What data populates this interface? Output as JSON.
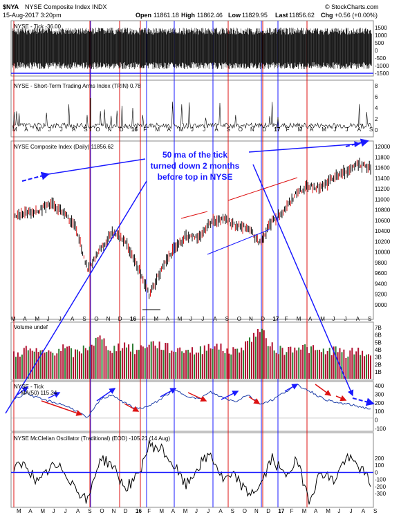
{
  "header": {
    "symbol": "$NYA",
    "name": "NYSE Composite Index INDX",
    "date": "15-Aug-2017 3:20pm",
    "open_label": "Open",
    "open": "11861.18",
    "high_label": "High",
    "high": "11862.46",
    "low_label": "Low",
    "low": "11829.95",
    "last_label": "Last",
    "last": "11856.62",
    "chg_label": "Chg",
    "chg": "+0.56 (+0.00%)",
    "source": "© StockCharts.com"
  },
  "colors": {
    "vline_red": "#dd1111",
    "vline_blue": "#1a1aff",
    "price": "#000000",
    "annotation": "#1a1aff",
    "vol_red": "#b01030",
    "vol_green": "#2e7d32"
  },
  "x_axis_labels": [
    "M",
    "A",
    "M",
    "J",
    "J",
    "A",
    "S",
    "O",
    "N",
    "D",
    "16",
    "F",
    "M",
    "A",
    "M",
    "J",
    "J",
    "A",
    "S",
    "O",
    "N",
    "D",
    "17",
    "F",
    "M",
    "A",
    "M",
    "J",
    "J",
    "A",
    "S"
  ],
  "panels": {
    "tick": {
      "label": "NYSE - Tick -36.00",
      "yticks": [
        "1500",
        "1000",
        "500",
        "0",
        "-500",
        "-1000",
        "-1500"
      ]
    },
    "trin": {
      "label": "NYSE - Short-Term Trading Arms Index (TRIN) 0.78",
      "yticks": [
        "8",
        "6",
        "4",
        "2",
        "0"
      ]
    },
    "price": {
      "label": "NYSE Composite Index (Daily) 11856.62",
      "yticks": [
        "12000",
        "11800",
        "11600",
        "11400",
        "11200",
        "11000",
        "10800",
        "10600",
        "10400",
        "10200",
        "10000",
        "9800",
        "9600",
        "9400",
        "9200",
        "9000"
      ]
    },
    "volume": {
      "label": "Volume undef",
      "yticks": [
        "7B",
        "6B",
        "5B",
        "4B",
        "3B",
        "2B",
        "1B"
      ]
    },
    "tickma": {
      "label": "NYSE - Tick",
      "sublabel": "MA(50) 115.34",
      "yticks": [
        "400",
        "300",
        "200",
        "100",
        "0",
        "-100"
      ]
    },
    "mco": {
      "label": "NYSE McClellan Oscillator (Traditional) (EOD) -105.21 (14 Aug)",
      "yticks": [
        "200",
        "100",
        "0",
        "-100",
        "-200",
        "-300"
      ]
    }
  },
  "annotation": "50 ma of the tick\nturned down 2 months\nbefore top in NYSE",
  "chart_data": [
    {
      "type": "line",
      "title": "NYSE Composite Index (Daily)",
      "x": [
        "M",
        "A",
        "M",
        "J",
        "J",
        "A",
        "S",
        "O",
        "N",
        "D",
        "16",
        "F",
        "M",
        "A",
        "M",
        "J",
        "J",
        "A",
        "S",
        "O",
        "N",
        "D",
        "17",
        "F",
        "M",
        "A",
        "M",
        "J",
        "J",
        "A"
      ],
      "series": [
        {
          "name": "NYSE Composite Index",
          "values": [
            10900,
            10950,
            11000,
            11150,
            10950,
            10700,
            9800,
            10200,
            10550,
            10400,
            9900,
            9300,
            9800,
            10200,
            10500,
            10450,
            10750,
            10850,
            10700,
            10650,
            10350,
            10800,
            11000,
            11350,
            11500,
            11450,
            11650,
            11800,
            11950,
            11856
          ]
        }
      ],
      "ylim": [
        8900,
        12150
      ]
    },
    {
      "type": "line",
      "title": "NYSE - Tick MA(50)",
      "x": [
        "M",
        "A",
        "M",
        "J",
        "J",
        "A",
        "S",
        "O",
        "N",
        "D",
        "16",
        "F",
        "M",
        "A",
        "M",
        "J",
        "J",
        "A",
        "S",
        "O",
        "N",
        "D",
        "17",
        "F",
        "M",
        "A",
        "M",
        "J",
        "J",
        "A"
      ],
      "series": [
        {
          "name": "MA(50)",
          "values": [
            240,
            320,
            250,
            210,
            170,
            100,
            0,
            230,
            300,
            190,
            120,
            150,
            250,
            360,
            290,
            240,
            330,
            260,
            210,
            300,
            180,
            230,
            330,
            420,
            350,
            260,
            200,
            180,
            150,
            115
          ]
        }
      ],
      "ylim": [
        -150,
        430
      ]
    },
    {
      "type": "line",
      "title": "NYSE McClellan Oscillator (Traditional) (EOD)",
      "x": [
        "M",
        "A",
        "M",
        "J",
        "J",
        "A",
        "S",
        "O",
        "N",
        "D",
        "16",
        "F",
        "M",
        "A",
        "M",
        "J",
        "J",
        "A",
        "S",
        "O",
        "N",
        "D",
        "17",
        "F",
        "M",
        "A",
        "M",
        "J",
        "J",
        "A"
      ],
      "series": [
        {
          "name": "McClellan Oscillator",
          "values": [
            40,
            80,
            -120,
            60,
            30,
            -150,
            -300,
            150,
            80,
            -160,
            -60,
            280,
            240,
            70,
            -140,
            60,
            190,
            -80,
            -40,
            -220,
            -150,
            150,
            -40,
            120,
            -270,
            10,
            -90,
            150,
            70,
            -105
          ]
        }
      ],
      "ylim": [
        -330,
        280
      ]
    },
    {
      "type": "bar",
      "title": "Volume",
      "series": [
        {
          "name": "Volume",
          "values": [
            3.2,
            3.9,
            3.4,
            3.6,
            4.1,
            3.3,
            4.3,
            5.4,
            3.9,
            4.6,
            3.7,
            4.8,
            4.4,
            3.8,
            4.0,
            3.5,
            4.7,
            3.9,
            3.6,
            4.9,
            6.6,
            4.2,
            3.7,
            4.4,
            4.0,
            3.5,
            3.9,
            3.3,
            3.6,
            3.2
          ]
        }
      ],
      "ylim": [
        0,
        7.2
      ]
    }
  ]
}
